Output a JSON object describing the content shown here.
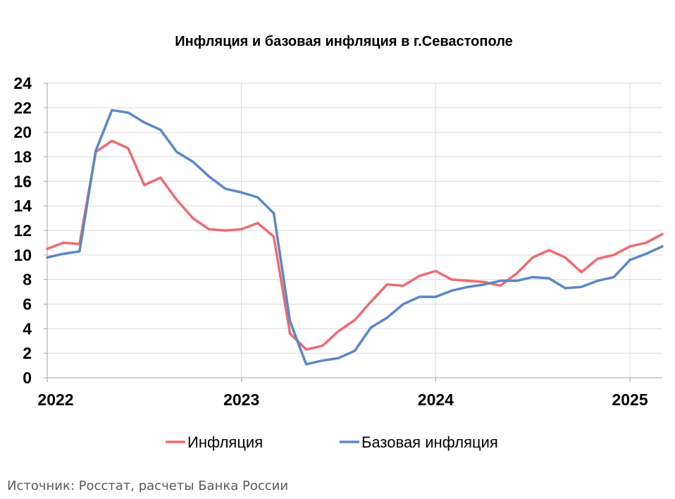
{
  "chart_data": {
    "type": "line",
    "title": "Инфляция и базовая инфляция в г.Севастополе",
    "xlabel": "",
    "ylabel": "",
    "ylim": [
      0,
      24
    ],
    "yticks": [
      "0",
      "2",
      "4",
      "6",
      "8",
      "10",
      "12",
      "14",
      "16",
      "18",
      "20",
      "22",
      "24"
    ],
    "xlim": [
      "2022-01",
      "2025-03"
    ],
    "xticks": [
      "2022",
      "2023",
      "2024",
      "2025"
    ],
    "grid": true,
    "legend_position": "bottom",
    "x": [
      "2022-01",
      "2022-02",
      "2022-03",
      "2022-04",
      "2022-05",
      "2022-06",
      "2022-07",
      "2022-08",
      "2022-09",
      "2022-10",
      "2022-11",
      "2022-12",
      "2023-01",
      "2023-02",
      "2023-03",
      "2023-04",
      "2023-05",
      "2023-06",
      "2023-07",
      "2023-08",
      "2023-09",
      "2023-10",
      "2023-11",
      "2023-12",
      "2024-01",
      "2024-02",
      "2024-03",
      "2024-04",
      "2024-05",
      "2024-06",
      "2024-07",
      "2024-08",
      "2024-09",
      "2024-10",
      "2024-11",
      "2024-12",
      "2025-01",
      "2025-02",
      "2025-03"
    ],
    "series": [
      {
        "name": "Инфляция",
        "color": "#EE6B6E",
        "values": [
          10.5,
          11.0,
          10.9,
          18.4,
          19.3,
          18.7,
          15.7,
          16.3,
          14.5,
          13.0,
          12.1,
          12.0,
          12.1,
          12.6,
          11.5,
          3.6,
          2.3,
          2.6,
          3.8,
          4.7,
          6.2,
          7.6,
          7.5,
          8.3,
          8.7,
          8.0,
          7.9,
          7.8,
          7.5,
          8.5,
          9.8,
          10.4,
          9.8,
          8.6,
          9.7,
          10.0,
          10.7,
          11.0,
          11.7
        ]
      },
      {
        "name": "Базовая инфляция",
        "color": "#5B87C5",
        "values": [
          9.8,
          10.1,
          10.3,
          18.5,
          21.8,
          21.6,
          20.8,
          20.2,
          18.4,
          17.6,
          16.4,
          15.4,
          15.1,
          14.7,
          13.4,
          4.6,
          1.1,
          1.4,
          1.6,
          2.2,
          4.1,
          4.9,
          6.0,
          6.6,
          6.6,
          7.1,
          7.4,
          7.6,
          7.9,
          7.9,
          8.2,
          8.1,
          7.3,
          7.4,
          7.9,
          8.2,
          9.6,
          10.1,
          10.7
        ]
      }
    ]
  },
  "source": "Источник: Росстат, расчеты Банка России"
}
